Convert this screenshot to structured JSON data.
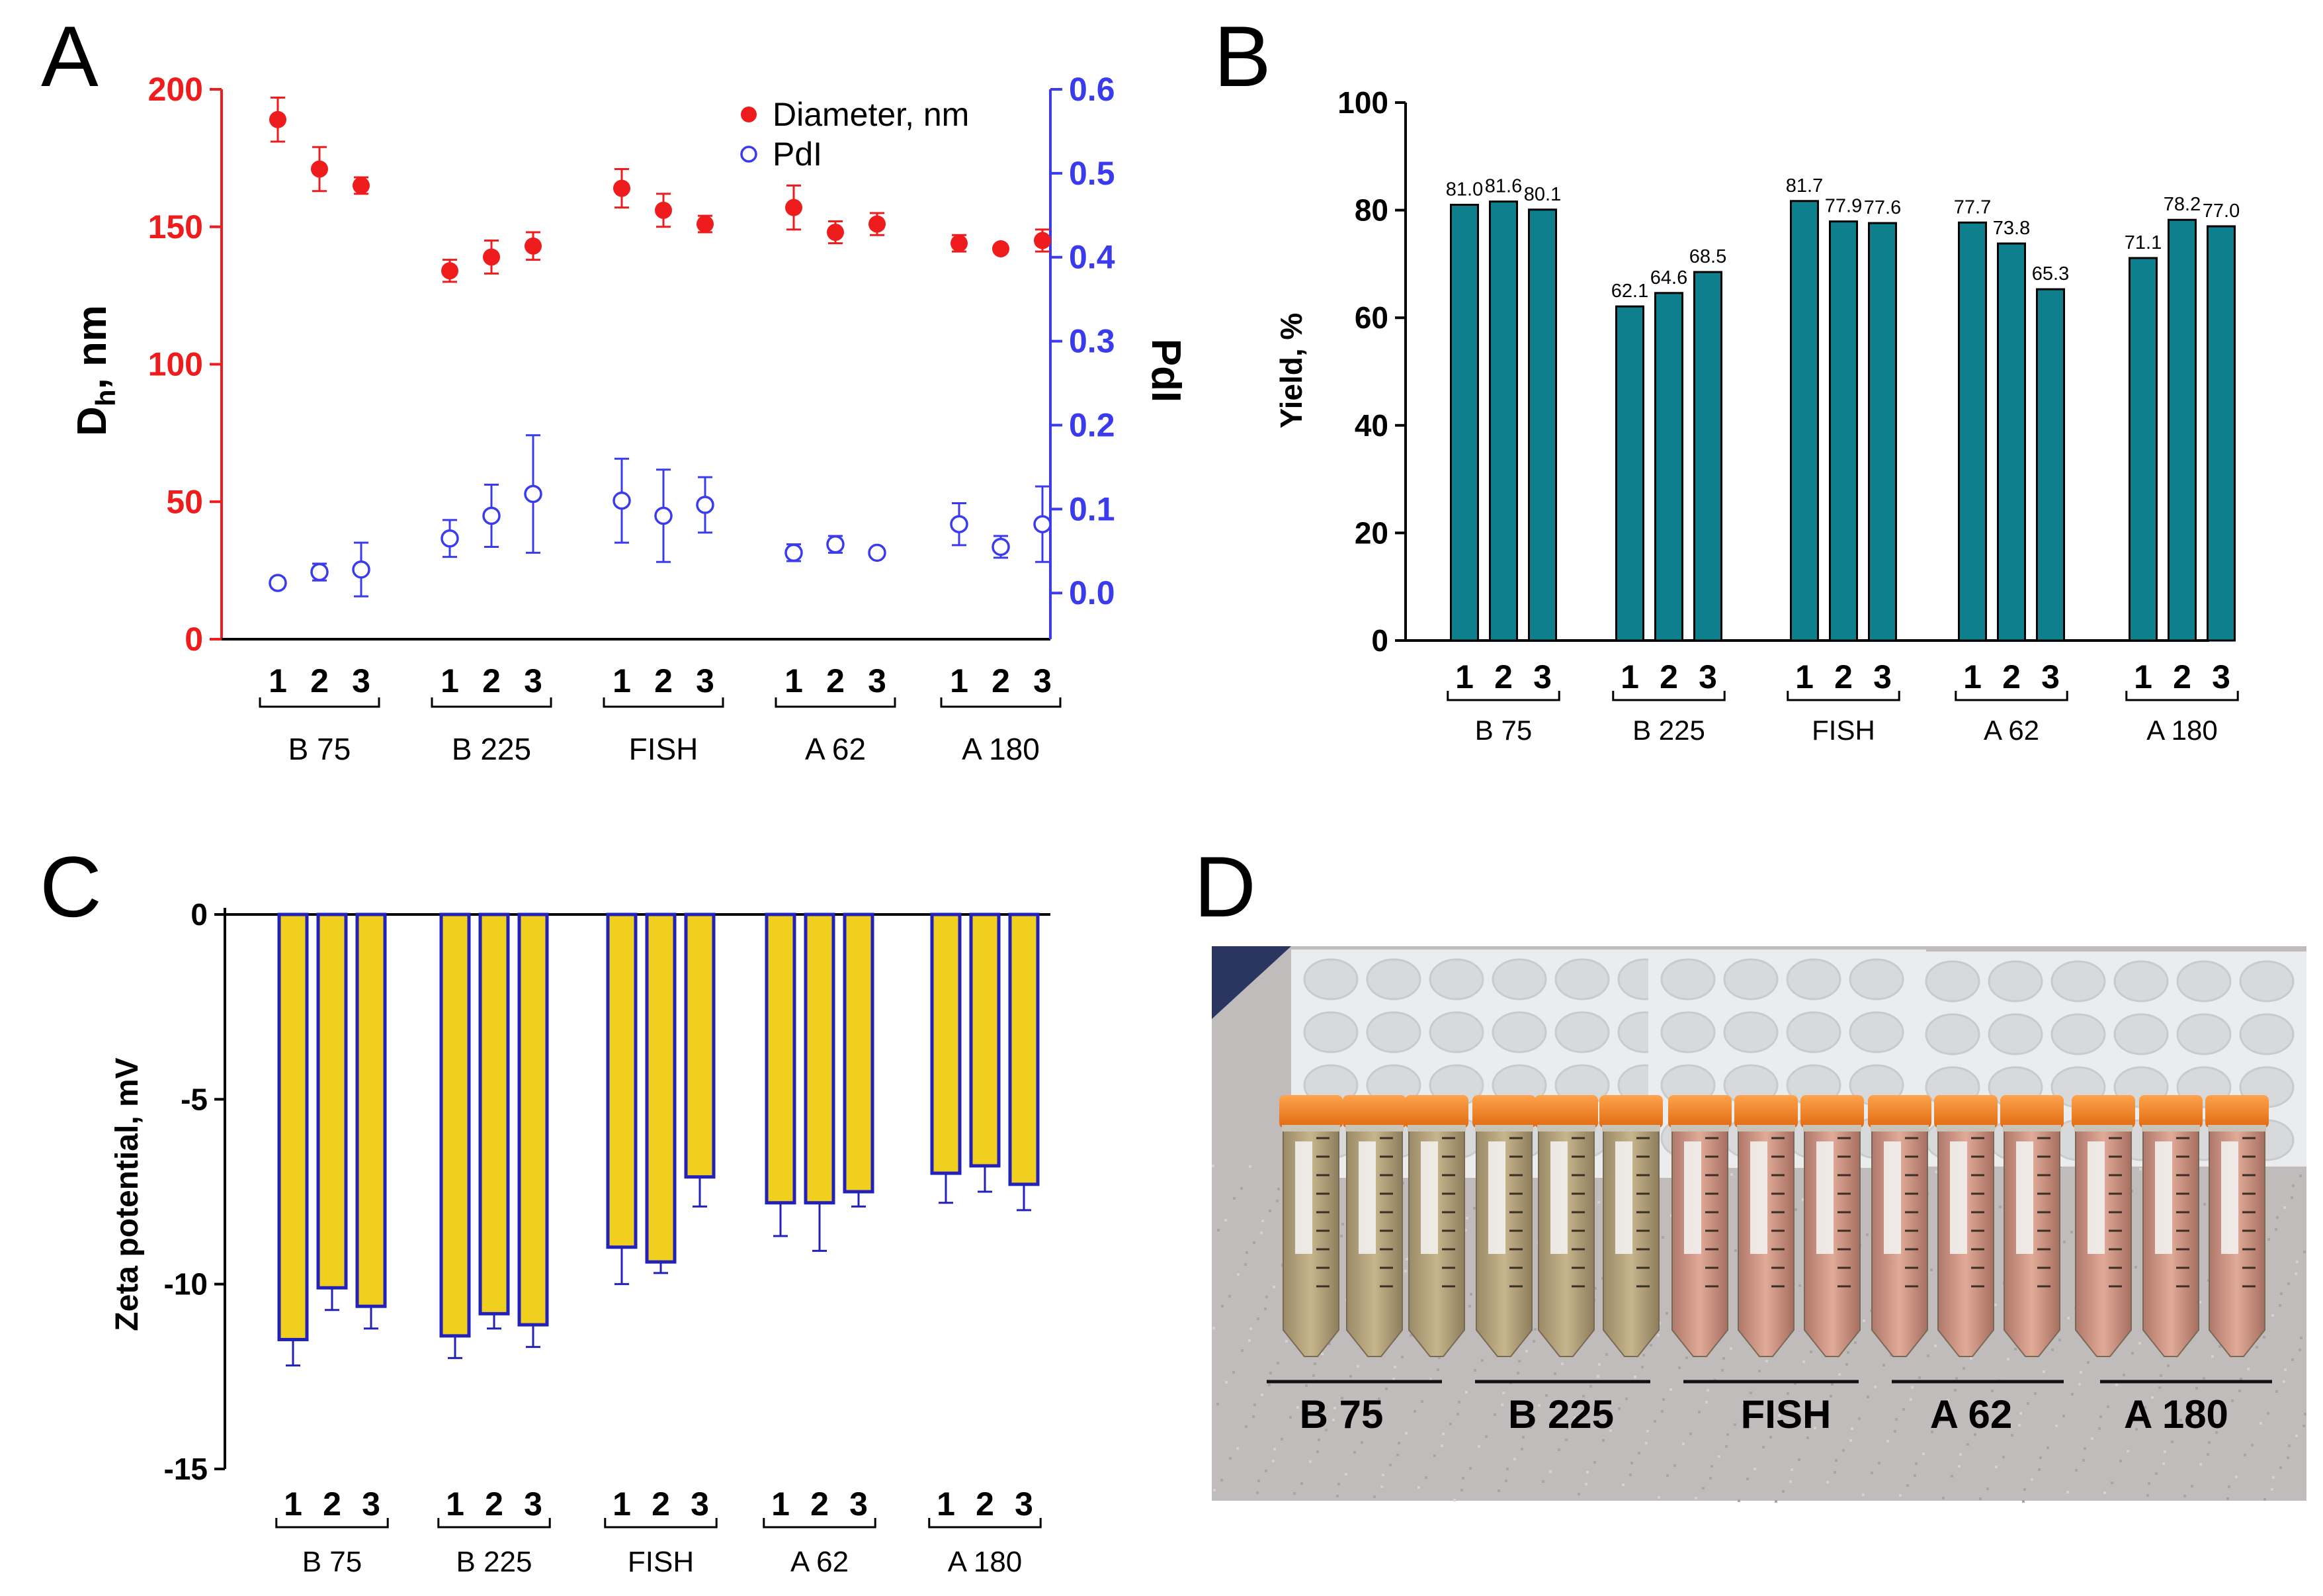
{
  "panel_letters": {
    "a": "A",
    "b": "B",
    "c": "C",
    "d": "D"
  },
  "group_names": [
    "B 75",
    "B 225",
    "FISH",
    "A 62",
    "A 180"
  ],
  "replicate_labels": [
    "1",
    "2",
    "3"
  ],
  "colors": {
    "diameter": "#ee1c1c",
    "pdi": "#3b3bee",
    "yield_bar": "#0e7f8c",
    "zeta_fill": "#f1cf1e",
    "zeta_edge": "#2222bb",
    "axis": "#000000"
  },
  "chart_data": [
    {
      "id": "A",
      "type": "scatter",
      "ylabel_main": "D",
      "ylabel_sub": "h",
      "ylabel_rest": ", nm",
      "y2label": "PdI",
      "ylim": [
        0,
        200
      ],
      "y_ticks": [
        "0",
        "50",
        "100",
        "150",
        "200"
      ],
      "y2lim": [
        -0.055,
        0.6
      ],
      "y2_ticks": [
        "0.0",
        "0.1",
        "0.2",
        "0.3",
        "0.4",
        "0.5",
        "0.6"
      ],
      "legend_position": "top-right",
      "series": [
        {
          "name": "Diameter, nm",
          "axis": "left",
          "marker": "filled-circle",
          "values": [
            189,
            171,
            165,
            134,
            139,
            143,
            164,
            156,
            151,
            157,
            148,
            151,
            144,
            142,
            145
          ],
          "errors": [
            8,
            8,
            3,
            4,
            6,
            5,
            7,
            6,
            3,
            8,
            4,
            4,
            3,
            1,
            4
          ]
        },
        {
          "name": "PdI",
          "axis": "right",
          "marker": "open-circle",
          "values": [
            0.012,
            0.025,
            0.028,
            0.065,
            0.092,
            0.118,
            0.11,
            0.092,
            0.105,
            0.048,
            0.058,
            0.048,
            0.082,
            0.055,
            0.082
          ],
          "errors": [
            0.006,
            0.01,
            0.032,
            0.022,
            0.037,
            0.07,
            0.05,
            0.055,
            0.033,
            0.01,
            0.01,
            0.003,
            0.025,
            0.013,
            0.045
          ]
        }
      ]
    },
    {
      "id": "B",
      "type": "bar",
      "ylabel": "Yield, %",
      "ylim": [
        0,
        100
      ],
      "y_ticks": [
        "0",
        "20",
        "40",
        "60",
        "80",
        "100"
      ],
      "values": [
        81.0,
        81.6,
        80.1,
        62.1,
        64.6,
        68.5,
        81.7,
        77.9,
        77.6,
        77.7,
        73.8,
        65.3,
        71.1,
        78.2,
        77.0
      ],
      "data_labels": [
        "81.0",
        "81.6",
        "80.1",
        "62.1",
        "64.6",
        "68.5",
        "81.7",
        "77.9",
        "77.6",
        "77.7",
        "73.8",
        "65.3",
        "71.1",
        "78.2",
        "77.0"
      ]
    },
    {
      "id": "C",
      "type": "bar",
      "ylabel": "Zeta potential, mV",
      "ylim": [
        -15,
        0
      ],
      "y_ticks": [
        "0",
        "-5",
        "-10",
        "-15"
      ],
      "values": [
        -11.5,
        -10.1,
        -10.6,
        -11.4,
        -10.8,
        -11.1,
        -9.0,
        -9.4,
        -7.1,
        -7.8,
        -7.8,
        -7.5,
        -7.0,
        -6.8,
        -7.3
      ],
      "errors": [
        0.7,
        0.6,
        0.6,
        0.6,
        0.4,
        0.6,
        1.0,
        0.3,
        0.8,
        0.9,
        1.3,
        0.4,
        0.8,
        0.7,
        0.7
      ]
    }
  ],
  "photo": {
    "tube_labels": [
      "B 75",
      "B 225",
      "FISH",
      "A 62",
      "A 180"
    ]
  }
}
